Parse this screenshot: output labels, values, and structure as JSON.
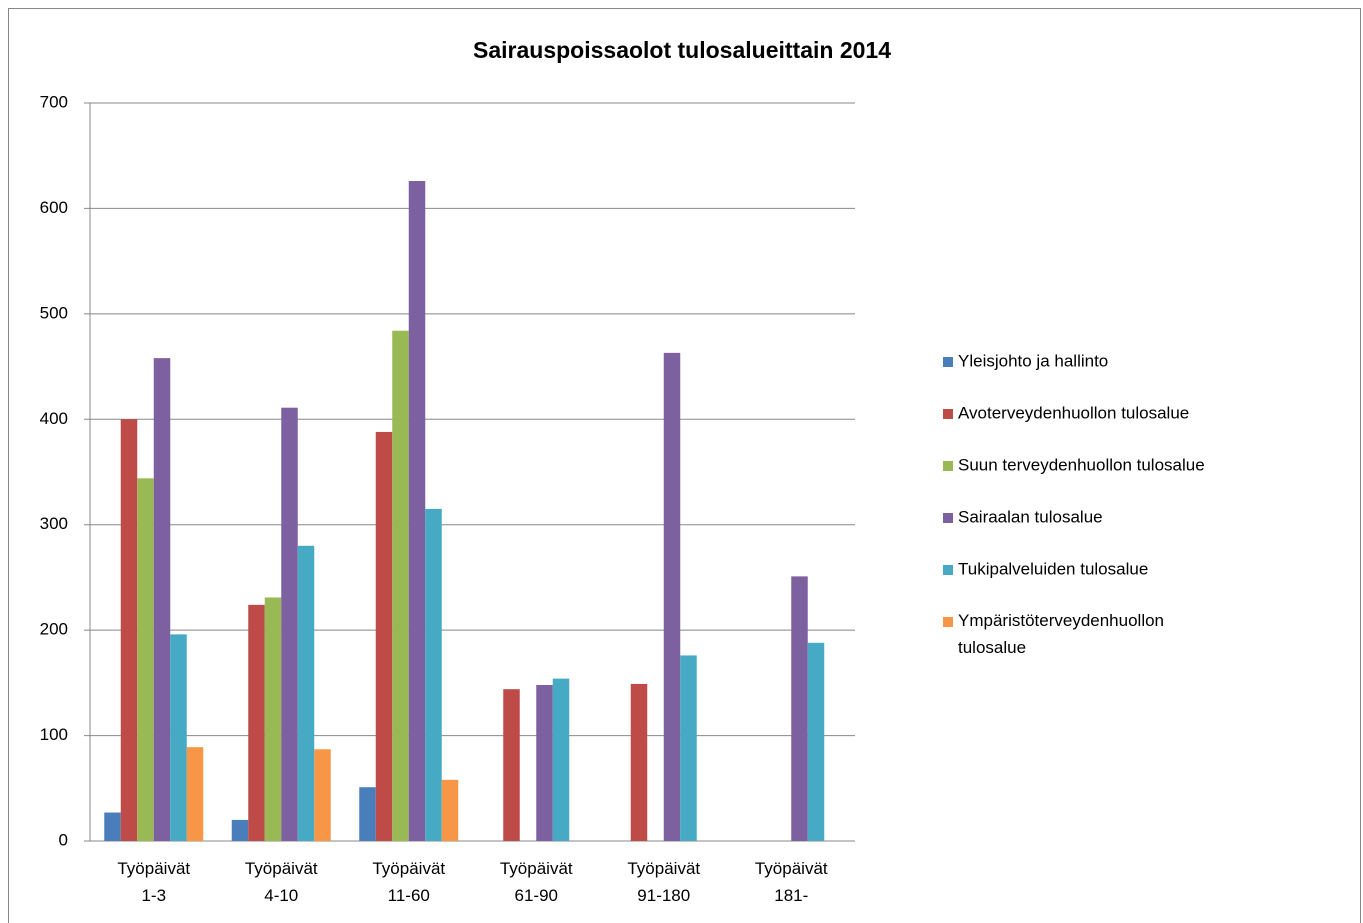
{
  "chart_data": {
    "type": "bar",
    "title": "Sairauspoissaolot tulosalueittain 2014",
    "categories": [
      "Työpäivät 1-3",
      "Työpäivät 4-10",
      "Työpäivät 11-60",
      "Työpäivät 61-90",
      "Työpäivät 91-180",
      "Työpäivät 181-"
    ],
    "series": [
      {
        "name": "Yleisjohto ja hallinto",
        "color": "#4a7ebb",
        "values": [
          27,
          20,
          51,
          0,
          0,
          0
        ]
      },
      {
        "name": "Avoterveydenhuollon tulosalue",
        "color": "#be4b48",
        "values": [
          400,
          224,
          388,
          144,
          149,
          0
        ]
      },
      {
        "name": "Suun terveydenhuollon tulosalue",
        "color": "#98b954",
        "values": [
          344,
          231,
          484,
          0,
          0,
          0
        ]
      },
      {
        "name": "Sairaalan tulosalue",
        "color": "#7d60a0",
        "values": [
          458,
          411,
          626,
          148,
          463,
          251
        ]
      },
      {
        "name": "Tukipalveluiden tulosalue",
        "color": "#46aac5",
        "values": [
          196,
          280,
          315,
          154,
          176,
          188
        ]
      },
      {
        "name": "Ympäristöterveydenhuollon tulosalue",
        "color": "#f79646",
        "values": [
          89,
          87,
          58,
          0,
          0,
          0
        ]
      }
    ],
    "ylim": [
      0,
      700
    ],
    "yticks": [
      0,
      100,
      200,
      300,
      400,
      500,
      600,
      700
    ],
    "grid": true,
    "legend": "right"
  }
}
